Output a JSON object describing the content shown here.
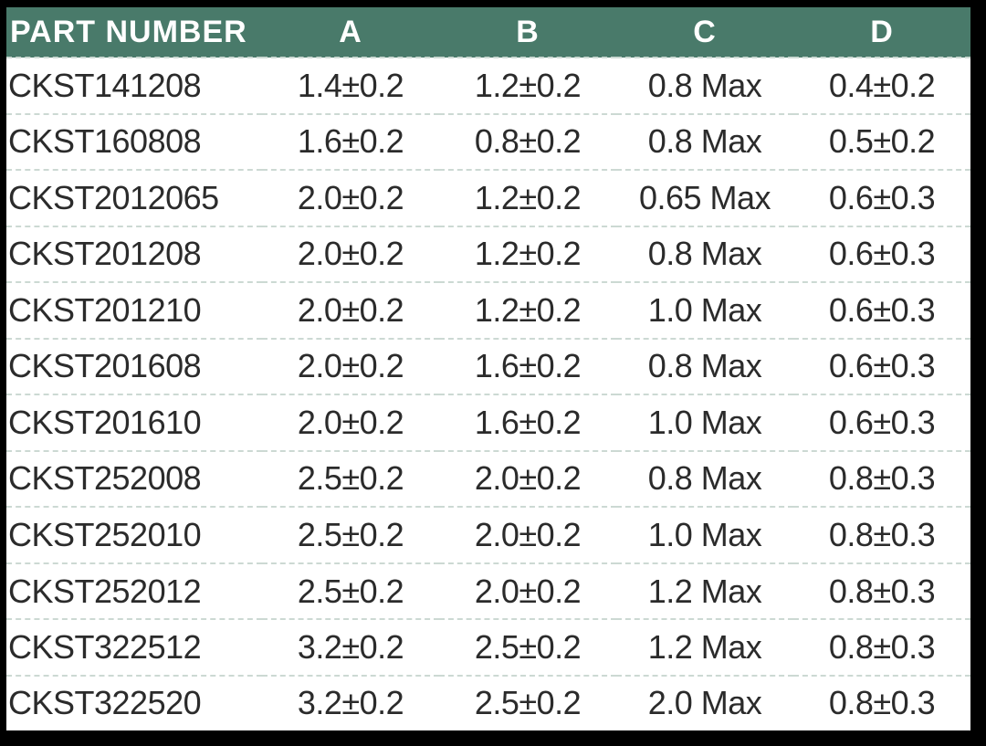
{
  "table": {
    "columns": [
      {
        "key": "part_number",
        "label": "PART NUMBER"
      },
      {
        "key": "a",
        "label": "A"
      },
      {
        "key": "b",
        "label": "B"
      },
      {
        "key": "c",
        "label": "C"
      },
      {
        "key": "d",
        "label": "D"
      }
    ],
    "rows": [
      {
        "part_number": "CKST141208",
        "a": "1.4±0.2",
        "b": "1.2±0.2",
        "c": "0.8 Max",
        "d": "0.4±0.2"
      },
      {
        "part_number": "CKST160808",
        "a": "1.6±0.2",
        "b": "0.8±0.2",
        "c": "0.8 Max",
        "d": "0.5±0.2"
      },
      {
        "part_number": "CKST2012065",
        "a": "2.0±0.2",
        "b": "1.2±0.2",
        "c": "0.65 Max",
        "d": "0.6±0.3"
      },
      {
        "part_number": "CKST201208",
        "a": "2.0±0.2",
        "b": "1.2±0.2",
        "c": "0.8 Max",
        "d": "0.6±0.3"
      },
      {
        "part_number": "CKST201210",
        "a": "2.0±0.2",
        "b": "1.2±0.2",
        "c": "1.0 Max",
        "d": "0.6±0.3"
      },
      {
        "part_number": "CKST201608",
        "a": "2.0±0.2",
        "b": "1.6±0.2",
        "c": "0.8 Max",
        "d": "0.6±0.3"
      },
      {
        "part_number": "CKST201610",
        "a": "2.0±0.2",
        "b": "1.6±0.2",
        "c": "1.0 Max",
        "d": "0.6±0.3"
      },
      {
        "part_number": "CKST252008",
        "a": "2.5±0.2",
        "b": "2.0±0.2",
        "c": "0.8 Max",
        "d": "0.8±0.3"
      },
      {
        "part_number": "CKST252010",
        "a": "2.5±0.2",
        "b": "2.0±0.2",
        "c": "1.0 Max",
        "d": "0.8±0.3"
      },
      {
        "part_number": "CKST252012",
        "a": "2.5±0.2",
        "b": "2.0±0.2",
        "c": "1.2 Max",
        "d": "0.8±0.3"
      },
      {
        "part_number": "CKST322512",
        "a": "3.2±0.2",
        "b": "2.5±0.2",
        "c": "1.2 Max",
        "d": "0.8±0.3"
      },
      {
        "part_number": "CKST322520",
        "a": "3.2±0.2",
        "b": "2.5±0.2",
        "c": "2.0 Max",
        "d": "0.8±0.3"
      }
    ]
  },
  "colors": {
    "header_bg": "#497A6A",
    "header_text": "#FFFFFF",
    "row_bg": "#FFFFFF",
    "row_divider": "#CCD9D3",
    "cell_text": "#2B2B2B",
    "frame": "#000000"
  }
}
